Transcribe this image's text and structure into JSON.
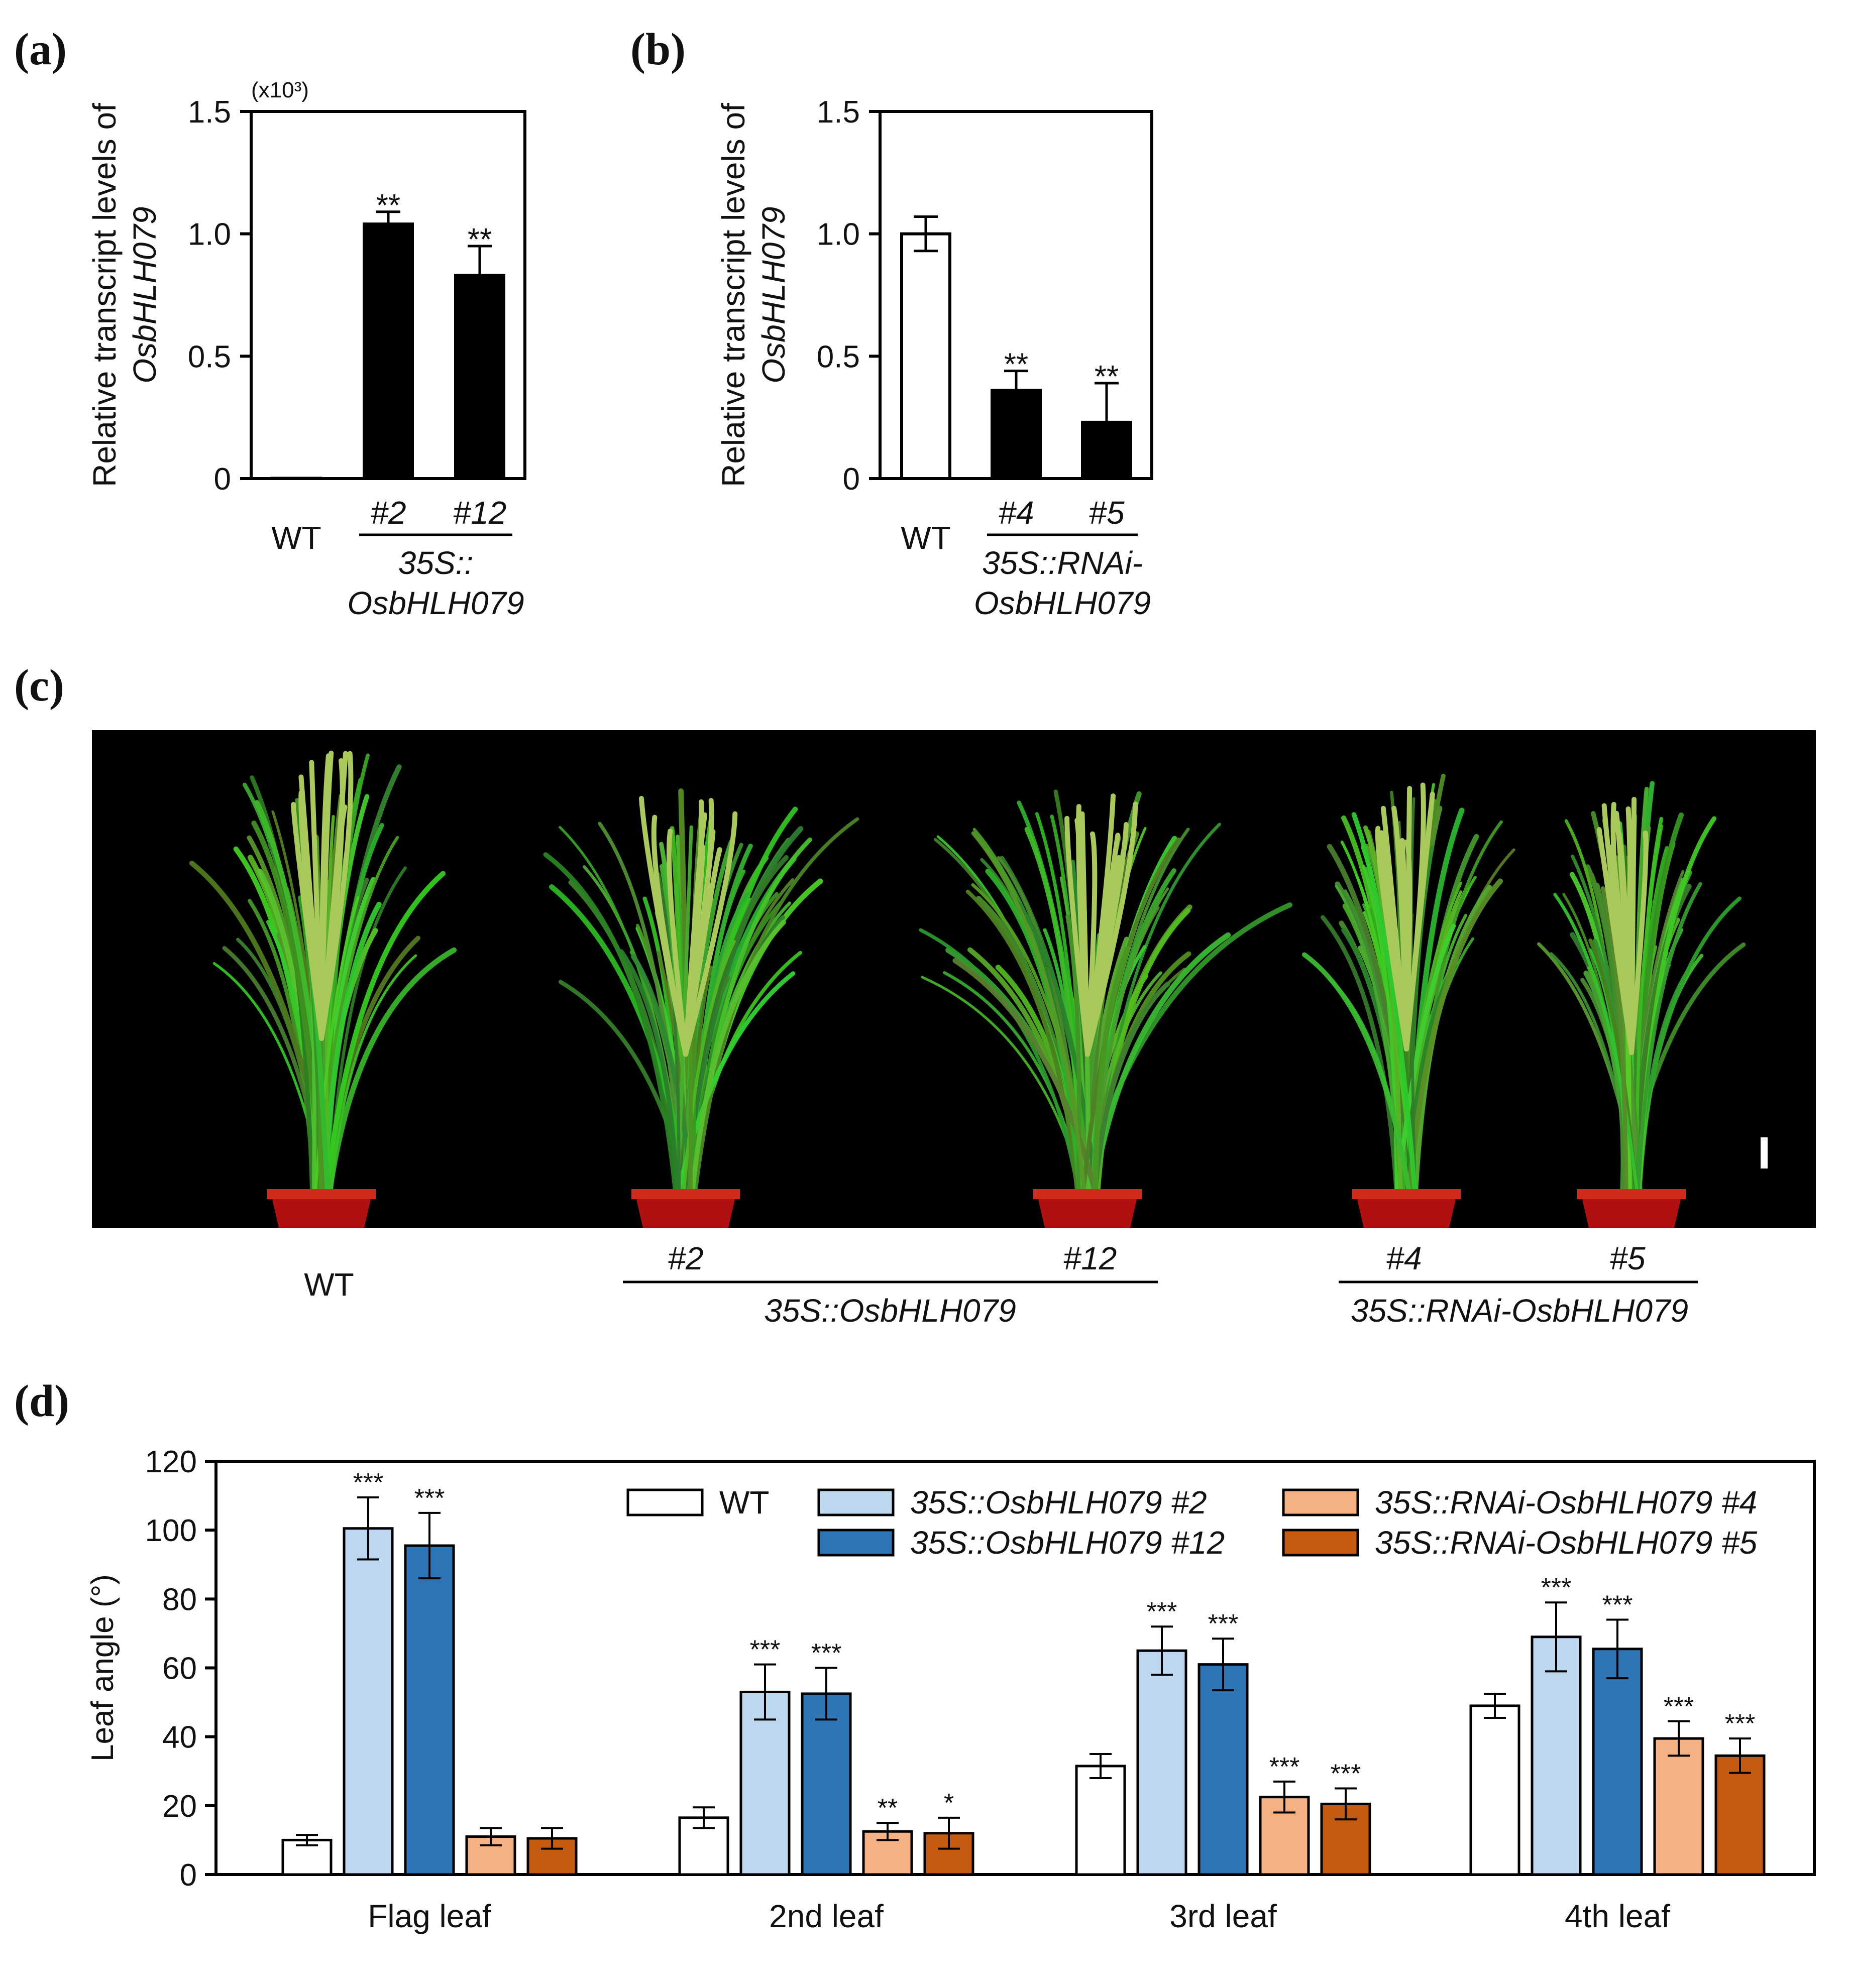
{
  "panels": {
    "a": {
      "label": "(a)"
    },
    "b": {
      "label": "(b)"
    },
    "c": {
      "label": "(c)"
    },
    "d": {
      "label": "(d)"
    }
  },
  "chart_data": [
    {
      "id": "a",
      "type": "bar",
      "ylabel_line1": "Relative transcript levels of",
      "ylabel_line2": "OsbHLH079",
      "multiplier": "(x10³)",
      "ylim": [
        0,
        1.5
      ],
      "yticks": [
        0,
        0.5,
        1.0,
        1.5
      ],
      "ytick_labels": [
        "0",
        "0.5",
        "1.0",
        "1.5"
      ],
      "categories": [
        "WT",
        "#2",
        "#12"
      ],
      "values": [
        0.001,
        1.04,
        0.83
      ],
      "errors": [
        0,
        0.05,
        0.12
      ],
      "colors": [
        "#ffffff",
        "#000000",
        "#000000"
      ],
      "significance": [
        "",
        "**",
        "**"
      ],
      "group_label_lines": [
        "35S::",
        "OsbHLH079"
      ]
    },
    {
      "id": "b",
      "type": "bar",
      "ylabel_line1": "Relative transcript levels of",
      "ylabel_line2": "OsbHLH079",
      "ylim": [
        0,
        1.5
      ],
      "yticks": [
        0,
        0.5,
        1.0,
        1.5
      ],
      "ytick_labels": [
        "0",
        "0.5",
        "1.0",
        "1.5"
      ],
      "categories": [
        "WT",
        "#4",
        "#5"
      ],
      "values": [
        1.0,
        0.36,
        0.23
      ],
      "errors": [
        0.07,
        0.08,
        0.16
      ],
      "colors": [
        "#ffffff",
        "#000000",
        "#000000"
      ],
      "significance": [
        "",
        "**",
        "**"
      ],
      "group_label_lines": [
        "35S::RNAi-",
        "OsbHLH079"
      ]
    },
    {
      "id": "d",
      "type": "bar",
      "ylabel": "Leaf angle (°)",
      "ylim": [
        0,
        120
      ],
      "yticks": [
        0,
        20,
        40,
        60,
        80,
        100,
        120
      ],
      "categories": [
        "Flag leaf",
        "2nd leaf",
        "3rd leaf",
        "4th leaf"
      ],
      "series": [
        {
          "name": "WT",
          "color": "#ffffff",
          "values": [
            10,
            16.5,
            31.5,
            49
          ],
          "errors": [
            1.5,
            3,
            3.5,
            3.5
          ],
          "significance": [
            "",
            "",
            "",
            ""
          ]
        },
        {
          "name": "35S::OsbHLH079 #2",
          "color": "#bdd7ee",
          "values": [
            100.5,
            53,
            65,
            69
          ],
          "errors": [
            9,
            8,
            7,
            10
          ],
          "significance": [
            "***",
            "***",
            "***",
            "***"
          ]
        },
        {
          "name": "35S::OsbHLH079 #12",
          "color": "#2e75b6",
          "values": [
            95.5,
            52.5,
            61,
            65.5
          ],
          "errors": [
            9.5,
            7.5,
            7.5,
            8.5
          ],
          "significance": [
            "***",
            "***",
            "***",
            "***"
          ]
        },
        {
          "name": "35S::RNAi-OsbHLH079 #4",
          "color": "#f4b183",
          "values": [
            11,
            12.5,
            22.5,
            39.5
          ],
          "errors": [
            2.5,
            2.5,
            4.5,
            5
          ],
          "significance": [
            "",
            "**",
            "***",
            "***"
          ]
        },
        {
          "name": "35S::RNAi-OsbHLH079 #5",
          "color": "#c55a11",
          "values": [
            10.5,
            12,
            20.5,
            34.5
          ],
          "errors": [
            3,
            4.5,
            4.5,
            5
          ],
          "significance": [
            "",
            "*",
            "***",
            "***"
          ]
        }
      ]
    }
  ],
  "photo": {
    "plant_labels": [
      "WT",
      "#2",
      "#12",
      "#4",
      "#5"
    ],
    "group1": "35S::OsbHLH079",
    "group2": "35S::RNAi-OsbHLH079",
    "background_color": "#000000",
    "pot_color": "#b01010",
    "leaf_color": "#3f9a2a"
  }
}
